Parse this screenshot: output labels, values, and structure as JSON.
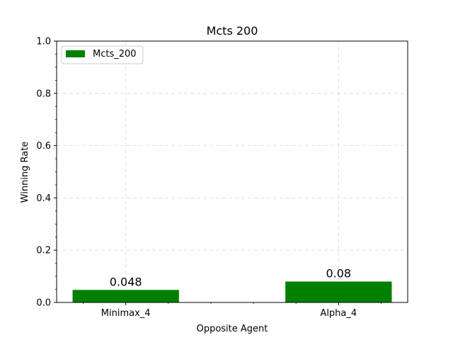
{
  "chart_data": {
    "type": "bar",
    "title": "Mcts 200",
    "xlabel": "Opposite Agent",
    "ylabel": "Winning Rate",
    "categories": [
      "Minimax_4",
      "Alpha_4"
    ],
    "series": [
      {
        "name": "Mcts_200",
        "values": [
          0.048,
          0.08
        ],
        "color": "#008000"
      }
    ],
    "data_labels": [
      "0.048",
      "0.08"
    ],
    "ylim": [
      0.0,
      1.0
    ],
    "yticks": [
      0.0,
      0.2,
      0.4,
      0.6,
      0.8,
      1.0
    ],
    "ytick_labels": [
      "0.0",
      "0.2",
      "0.4",
      "0.6",
      "0.8",
      "1.0"
    ],
    "grid": true,
    "legend_position": "top-left"
  }
}
